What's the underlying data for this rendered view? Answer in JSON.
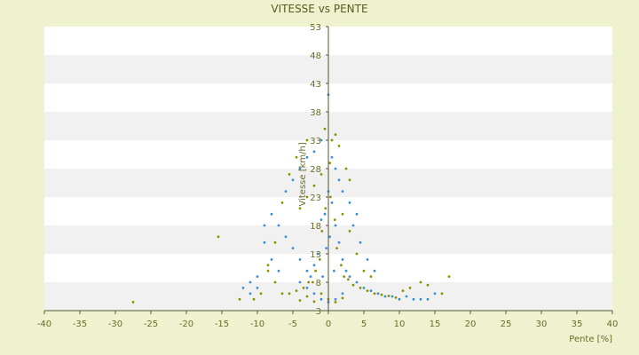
{
  "chart_data": {
    "type": "scatter",
    "title": "VITESSE vs PENTE",
    "xlabel": "Pente [%]",
    "ylabel": "Vitesse [km/h]",
    "xlim": [
      -40,
      40
    ],
    "ylim": [
      3,
      53
    ],
    "x_ticks": [
      -40,
      -35,
      -30,
      -25,
      -20,
      -15,
      -10,
      -5,
      0,
      5,
      10,
      15,
      20,
      25,
      30,
      35,
      40
    ],
    "y_ticks": [
      3,
      8,
      13,
      18,
      23,
      28,
      33,
      38,
      43,
      48,
      53
    ],
    "grid": "horizontal-bands",
    "legend": "none",
    "colors": {
      "page_bg": "#eef2cf",
      "band_white": "#ffffff",
      "band_grey": "#f1f1f1",
      "series_a": "#3b8fd9",
      "series_b": "#8f8f00",
      "axis": "#555533"
    },
    "series": [
      {
        "values": [
          [
            0,
            24
          ],
          [
            0.5,
            22
          ],
          [
            -0.5,
            20
          ],
          [
            1,
            18
          ],
          [
            -1,
            19
          ],
          [
            0.2,
            16
          ],
          [
            -0.3,
            14
          ],
          [
            1.5,
            15
          ],
          [
            -1.5,
            13
          ],
          [
            2,
            12
          ],
          [
            -2,
            11
          ],
          [
            0.8,
            10
          ],
          [
            -0.8,
            9
          ],
          [
            2.5,
            10
          ],
          [
            3,
            9
          ],
          [
            -2.5,
            9
          ],
          [
            4,
            8
          ],
          [
            5,
            7
          ],
          [
            6,
            6.5
          ],
          [
            7,
            6
          ],
          [
            8,
            5.5
          ],
          [
            9,
            5.5
          ],
          [
            10,
            5
          ],
          [
            11,
            5.5
          ],
          [
            12,
            5
          ],
          [
            -3,
            10
          ],
          [
            -4,
            12
          ],
          [
            -5,
            14
          ],
          [
            -6,
            16
          ],
          [
            -7,
            18
          ],
          [
            -8,
            20
          ],
          [
            -9,
            15
          ],
          [
            -10,
            9
          ],
          [
            -11,
            8
          ],
          [
            -12,
            7
          ],
          [
            -6,
            24
          ],
          [
            -5,
            26
          ],
          [
            -4,
            28
          ],
          [
            -3,
            30
          ],
          [
            -2,
            31
          ],
          [
            -1,
            33
          ],
          [
            0.5,
            30
          ],
          [
            1,
            28
          ],
          [
            1.5,
            26
          ],
          [
            2,
            24
          ],
          [
            3,
            22
          ],
          [
            4,
            20
          ],
          [
            3.5,
            18
          ],
          [
            4.5,
            15
          ],
          [
            5.5,
            12
          ],
          [
            6.5,
            10
          ],
          [
            2,
            6
          ],
          [
            1,
            5
          ],
          [
            0,
            4.5
          ],
          [
            -1,
            5
          ],
          [
            -2,
            6
          ],
          [
            -3,
            7
          ],
          [
            -4,
            8
          ],
          [
            -7,
            10
          ],
          [
            -8,
            12
          ],
          [
            -9,
            18
          ],
          [
            -10,
            7
          ],
          [
            -11,
            6
          ],
          [
            13,
            5
          ],
          [
            14,
            5
          ],
          [
            0,
            41
          ],
          [
            15,
            6
          ]
        ]
      },
      {
        "values": [
          [
            0.3,
            23
          ],
          [
            -0.4,
            21
          ],
          [
            0.9,
            19
          ],
          [
            -0.9,
            17
          ],
          [
            1.2,
            14
          ],
          [
            -1.2,
            12
          ],
          [
            1.8,
            11
          ],
          [
            -1.8,
            10
          ],
          [
            2.2,
            9
          ],
          [
            -2.2,
            8
          ],
          [
            2.8,
            8.5
          ],
          [
            -2.8,
            8
          ],
          [
            3.5,
            7.5
          ],
          [
            -3.5,
            7
          ],
          [
            4.5,
            7
          ],
          [
            -4.5,
            6.5
          ],
          [
            5.5,
            6.5
          ],
          [
            -5.5,
            6
          ],
          [
            6.5,
            6
          ],
          [
            -6.5,
            6
          ],
          [
            7.5,
            5.8
          ],
          [
            8.5,
            5.6
          ],
          [
            9.5,
            5.3
          ],
          [
            -7.5,
            8
          ],
          [
            -8.5,
            10
          ],
          [
            -9.5,
            6
          ],
          [
            -10.5,
            5
          ],
          [
            1,
            34
          ],
          [
            -0.5,
            35
          ],
          [
            0.5,
            33
          ],
          [
            -3,
            33
          ],
          [
            -4.5,
            30
          ],
          [
            -5.5,
            27
          ],
          [
            -6.5,
            22
          ],
          [
            -7.5,
            15
          ],
          [
            -8.5,
            11
          ],
          [
            -12.5,
            5
          ],
          [
            -15.5,
            16
          ],
          [
            -27.5,
            4.5
          ],
          [
            17,
            9
          ],
          [
            16,
            6
          ],
          [
            14,
            7.5
          ],
          [
            13,
            8
          ],
          [
            11.5,
            7
          ],
          [
            10.5,
            6.5
          ],
          [
            3,
            26
          ],
          [
            2.5,
            28
          ],
          [
            1.5,
            32
          ],
          [
            0.2,
            29
          ],
          [
            -1,
            27
          ],
          [
            -2,
            25
          ],
          [
            -3,
            23
          ],
          [
            -4,
            21
          ],
          [
            2,
            20
          ],
          [
            3,
            17
          ],
          [
            4,
            13
          ],
          [
            5,
            10
          ],
          [
            6,
            9
          ],
          [
            -1,
            6
          ],
          [
            0,
            5
          ],
          [
            1,
            4.5
          ],
          [
            2,
            5.2
          ],
          [
            -2,
            4.6
          ],
          [
            -3,
            5.5
          ],
          [
            -4,
            4.8
          ]
        ]
      }
    ]
  }
}
